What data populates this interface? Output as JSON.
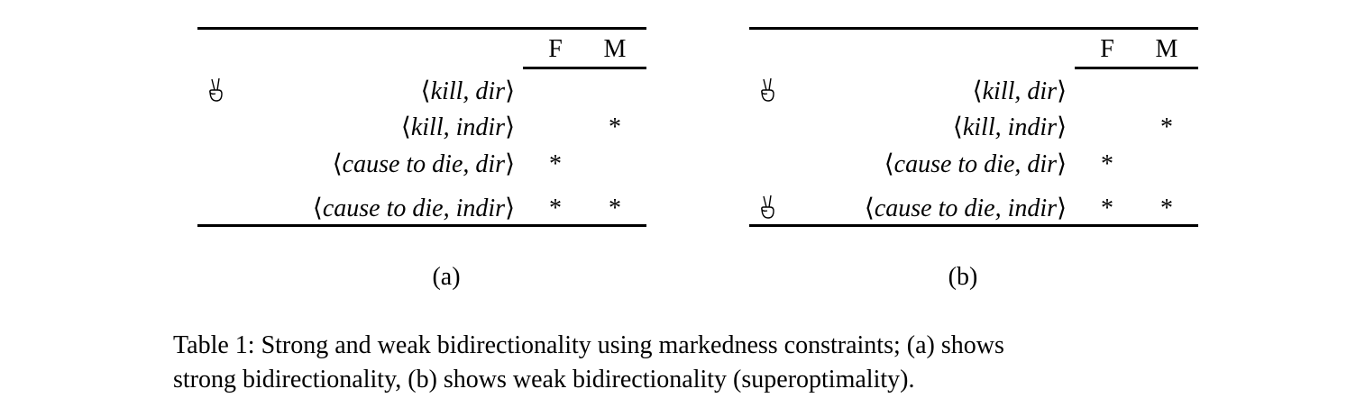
{
  "tables": {
    "a": {
      "col_f": "F",
      "col_m": "M",
      "rows": [
        {
          "cand": "kill, dir",
          "f": "",
          "m": ""
        },
        {
          "cand": "kill, indir",
          "f": "",
          "m": "*"
        },
        {
          "cand": "cause to die, dir",
          "f": "*",
          "m": ""
        },
        {
          "cand": "cause to die, indir",
          "f": "*",
          "m": "*"
        }
      ],
      "label": "(a)"
    },
    "b": {
      "col_f": "F",
      "col_m": "M",
      "rows": [
        {
          "cand": "kill, dir",
          "f": "",
          "m": ""
        },
        {
          "cand": "kill, indir",
          "f": "",
          "m": "*"
        },
        {
          "cand": "cause to die, dir",
          "f": "*",
          "m": ""
        },
        {
          "cand": "cause to die, indir",
          "f": "*",
          "m": "*"
        }
      ],
      "label": "(b)"
    }
  },
  "winner_icon": "victory-hand-icon",
  "caption": {
    "line1": "Table 1: Strong and weak bidirectionality using markedness constraints; (a) shows",
    "line2": "strong bidirectionality, (b) shows weak bidirectionality (superoptimality)."
  }
}
